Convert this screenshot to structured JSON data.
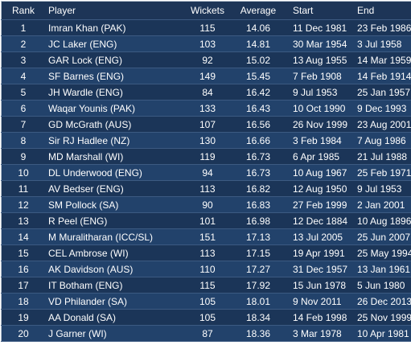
{
  "table": {
    "header": [
      "Rank",
      "Player",
      "Wickets",
      "Average",
      "Start",
      "End"
    ],
    "rows": [
      [
        "1",
        "Imran Khan (PAK)",
        "115",
        "14.06",
        "11 Dec 1981",
        "23 Feb 1986"
      ],
      [
        "2",
        "JC Laker (ENG)",
        "103",
        "14.81",
        "30 Mar 1954",
        "3 Jul 1958"
      ],
      [
        "3",
        "GAR Lock (ENG)",
        "92",
        "15.02",
        "13 Aug 1955",
        "14 Mar 1959"
      ],
      [
        "4",
        "SF Barnes (ENG)",
        "149",
        "15.45",
        "7 Feb 1908",
        "14 Feb 1914"
      ],
      [
        "5",
        "JH Wardle (ENG)",
        "84",
        "16.42",
        "9 Jul 1953",
        "25 Jan 1957"
      ],
      [
        "6",
        "Waqar Younis (PAK)",
        "133",
        "16.43",
        "10 Oct 1990",
        "9 Dec 1993"
      ],
      [
        "7",
        "GD McGrath (AUS)",
        "107",
        "16.56",
        "26 Nov 1999",
        "23 Aug 2001"
      ],
      [
        "8",
        "Sir RJ Hadlee (NZ)",
        "130",
        "16.66",
        "3 Feb 1984",
        "7 Aug 1986"
      ],
      [
        "9",
        "MD Marshall (WI)",
        "119",
        "16.73",
        "6 Apr 1985",
        "21 Jul 1988"
      ],
      [
        "10",
        "DL Underwood (ENG)",
        "94",
        "16.73",
        "10 Aug 1967",
        "25 Feb 1971"
      ],
      [
        "11",
        "AV Bedser (ENG)",
        "113",
        "16.82",
        "12 Aug 1950",
        "9 Jul 1953"
      ],
      [
        "12",
        "SM Pollock (SA)",
        "90",
        "16.83",
        "27 Feb 1999",
        "2 Jan 2001"
      ],
      [
        "13",
        "R Peel (ENG)",
        "101",
        "16.98",
        "12 Dec 1884",
        "10 Aug 1896"
      ],
      [
        "14",
        "M Muralitharan (ICC/SL)",
        "151",
        "17.13",
        "13 Jul 2005",
        "25 Jun 2007"
      ],
      [
        "15",
        "CEL Ambrose (WI)",
        "113",
        "17.15",
        "19 Apr 1991",
        "25 May 1994"
      ],
      [
        "16",
        "AK Davidson (AUS)",
        "110",
        "17.27",
        "31 Dec 1957",
        "13 Jan 1961"
      ],
      [
        "17",
        "IT Botham (ENG)",
        "115",
        "17.92",
        "15 Jun 1978",
        "5 Jun 1980"
      ],
      [
        "18",
        "VD Philander (SA)",
        "105",
        "18.01",
        "9 Nov 2011",
        "26 Dec 2013"
      ],
      [
        "19",
        "AA Donald (SA)",
        "105",
        "18.34",
        "14 Feb 1998",
        "25 Nov 1999"
      ],
      [
        "20",
        "J Garner (WI)",
        "87",
        "18.36",
        "3 Mar 1978",
        "10 Apr 1981"
      ]
    ]
  }
}
